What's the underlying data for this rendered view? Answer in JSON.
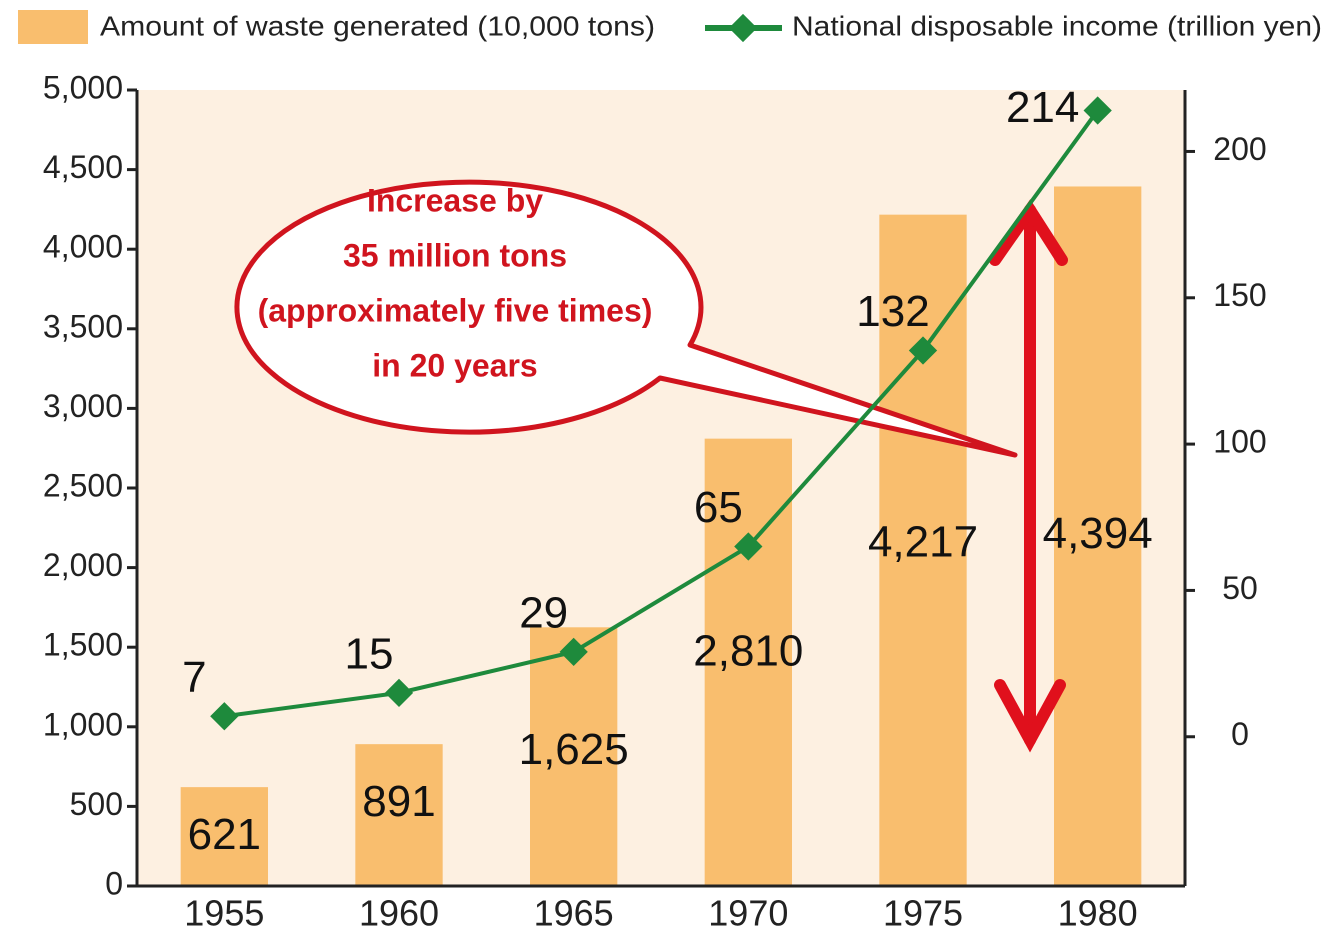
{
  "chart_data": {
    "type": "bar",
    "categories": [
      "1955",
      "1960",
      "1965",
      "1970",
      "1975",
      "1980"
    ],
    "series": [
      {
        "name": "Amount of waste generated (10,000 tons)",
        "type": "bar",
        "color": "#f9be6e",
        "values": [
          621,
          891,
          1625,
          2810,
          4217,
          4394
        ],
        "value_labels": [
          "621",
          "891",
          "1,625",
          "2,810",
          "4,217",
          "4,394"
        ]
      },
      {
        "name": "National disposable income (trillion yen)",
        "type": "line",
        "color": "#1e8a3c",
        "axis": "y2",
        "values": [
          7,
          15,
          29,
          65,
          132,
          214
        ]
      }
    ],
    "ylim": [
      0,
      5000
    ],
    "yticks": [
      0,
      500,
      {
        "value": 1000,
        "label": "1,000"
      },
      {
        "value": 1500,
        "label": "1,500"
      },
      {
        "value": 2000,
        "label": "2,000"
      },
      {
        "value": 2500,
        "label": "2,500"
      },
      {
        "value": 3000,
        "label": "3,000"
      },
      {
        "value": 3500,
        "label": "3,500"
      },
      {
        "value": 4000,
        "label": "4,000"
      },
      {
        "value": 4500,
        "label": "4,500"
      },
      {
        "value": 5000,
        "label": "5,000"
      }
    ],
    "y2lim": [
      -51,
      221
    ],
    "y2ticks": [
      0,
      50,
      100,
      150,
      200
    ],
    "annotation": [
      "Increase by",
      "35 million tons",
      "(approximately five times)",
      "in 20 years"
    ],
    "legend": "top"
  }
}
